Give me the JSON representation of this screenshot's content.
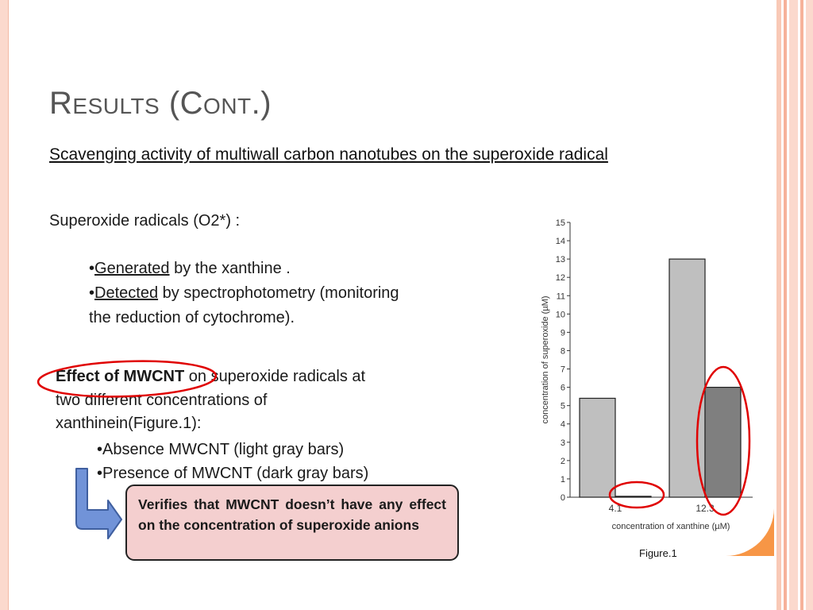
{
  "slide": {
    "title": "Results (Cont.)",
    "subtitle": "Scavenging activity of multiwall carbon nanotubes on the superoxide radical",
    "intro": "Superoxide radicals (O2*) :",
    "bullet1": {
      "marker": "•",
      "term": "Generated",
      "rest": " by the xanthine ."
    },
    "bullet2": {
      "marker": "•",
      "term": "Detected",
      "rest": " by spectrophotometry (monitoring",
      "cont": "the reduction of cytochrome)."
    },
    "effect": {
      "bold": "Effect of MWCNT",
      "line1_rest": " on superoxide radicals at",
      "line2": "two different concentrations of",
      "line3": "xanthinein(Figure.1):",
      "item1": "•Absence MWCNT (light gray bars)",
      "item2": "•Presence  of MWCNT (dark gray bars)"
    },
    "callout": "Verifies that MWCNT doesn’t have any effect on the concentration of superoxide anions",
    "caption": "Figure.1"
  },
  "colors": {
    "title": "#555555",
    "callout_bg": "#f4cfcf",
    "highlight": "#e00000",
    "arrow": "#7193d8",
    "light_bar": "#bfbfbf",
    "dark_bar": "#7f7f7f",
    "accent": "#f79646"
  },
  "chart_data": {
    "type": "bar",
    "categories": [
      "4.1",
      "12.3"
    ],
    "series": [
      {
        "values": [
          5.4,
          13.0
        ]
      },
      {
        "values": [
          0.05,
          6.0
        ]
      }
    ],
    "xlabel": "concentration of xanthine (µM)",
    "ylabel": "concentration of superoxide (µM)",
    "ylim": [
      0,
      15
    ],
    "yticks": [
      "0",
      "1",
      "2",
      "3",
      "4",
      "5",
      "6",
      "7",
      "8",
      "9",
      "10",
      "11",
      "12",
      "13",
      "14",
      "15"
    ]
  }
}
